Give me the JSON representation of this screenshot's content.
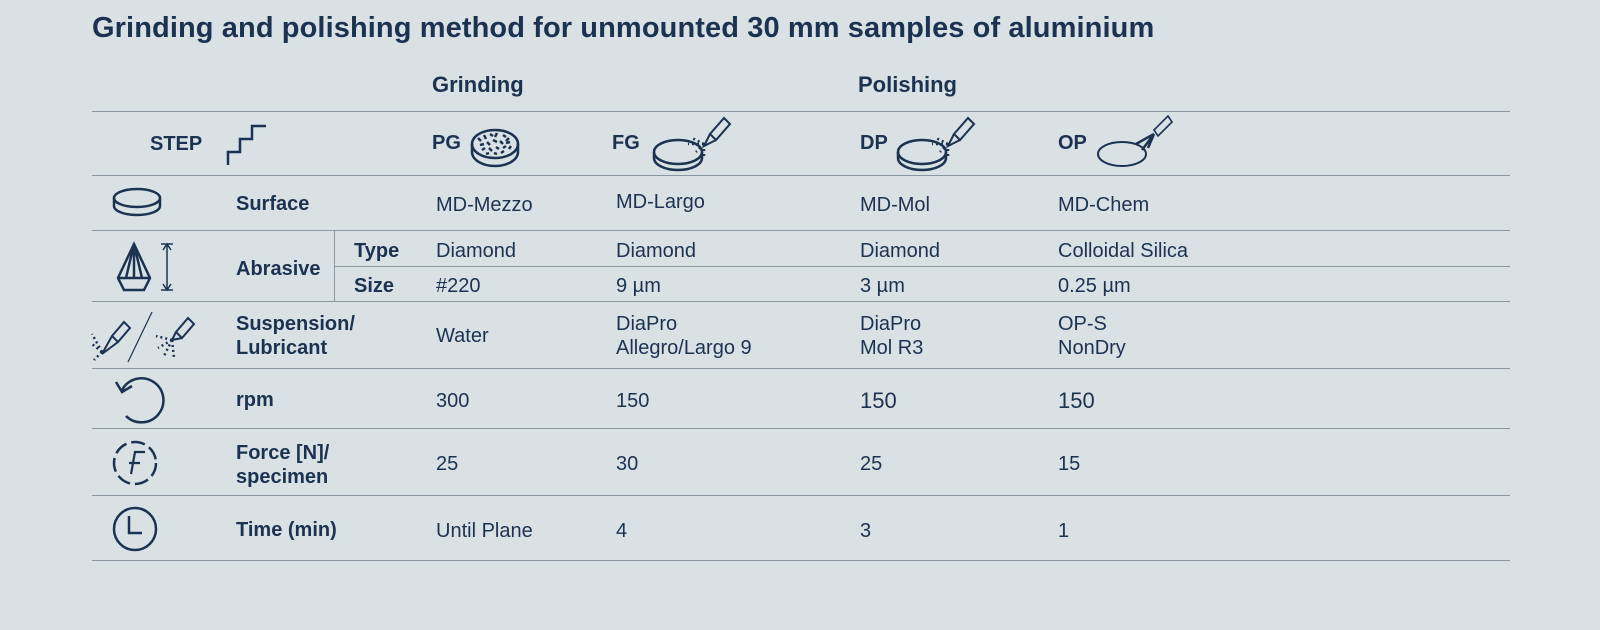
{
  "title": "Grinding and polishing method for unmounted 30 mm samples of aluminium",
  "groups": {
    "grinding": "Grinding",
    "polishing": "Polishing"
  },
  "step_header": "STEP",
  "steps": [
    {
      "code": "PG",
      "icon": "grinding-disc-icon"
    },
    {
      "code": "FG",
      "icon": "disc-with-spray-icon"
    },
    {
      "code": "DP",
      "icon": "disc-with-spray-icon"
    },
    {
      "code": "OP",
      "icon": "cloth-with-spray-icon"
    }
  ],
  "rows": {
    "surface": {
      "label": "Surface",
      "values": [
        "MD-Mezzo",
        "MD-Largo",
        "MD-Mol",
        "MD-Chem"
      ]
    },
    "abrasive": {
      "label": "Abrasive",
      "type": {
        "label": "Type",
        "values": [
          "Diamond",
          "Diamond",
          "Diamond",
          "Colloidal Silica"
        ]
      },
      "size": {
        "label": "Size",
        "values": [
          "#220",
          "9 µm",
          "3 µm",
          "0.25 µm"
        ]
      }
    },
    "suspension": {
      "label_line1": "Suspension/",
      "label_line2": "Lubricant",
      "values": [
        {
          "line1": "Water",
          "line2": ""
        },
        {
          "line1": "DiaPro",
          "line2": "Allegro/Largo 9"
        },
        {
          "line1": "DiaPro",
          "line2": "Mol R3"
        },
        {
          "line1": "OP-S",
          "line2": "NonDry"
        }
      ]
    },
    "rpm": {
      "label": "rpm",
      "values": [
        "300",
        "150",
        "150",
        "150"
      ]
    },
    "force": {
      "label_line1": "Force [N]/",
      "label_line2": "specimen",
      "values": [
        "25",
        "30",
        "25",
        "15"
      ]
    },
    "time": {
      "label": "Time (min)",
      "values": [
        "Until Plane",
        "4",
        "3",
        "1"
      ]
    }
  }
}
